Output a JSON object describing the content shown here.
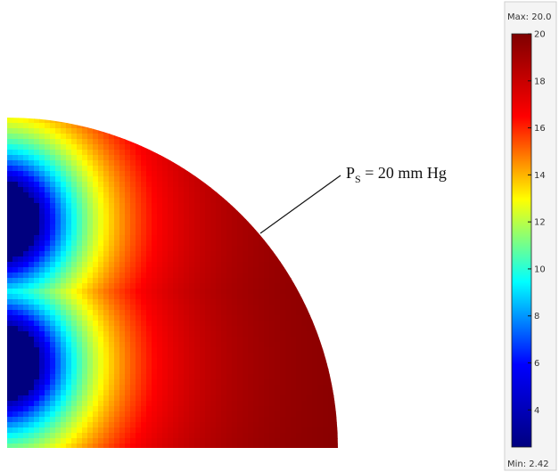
{
  "chart_data": {
    "type": "heatmap",
    "title": "",
    "xlabel": "",
    "ylabel": "",
    "colormap": "jet",
    "colormap_stops": [
      "#00007f",
      "#0000ff",
      "#00ffff",
      "#ffff00",
      "#ff0000",
      "#7f0000"
    ],
    "colorbar": {
      "max_label": "Max: 20.0",
      "min_label": "Min: 2.42",
      "max": 20.0,
      "min": 2.42,
      "ticks": [
        "20",
        "18",
        "16",
        "14",
        "12",
        "10",
        "8",
        "6",
        "4"
      ],
      "tick_values": [
        20,
        18,
        16,
        14,
        12,
        10,
        8,
        6,
        4
      ]
    },
    "domain": "quarter-circle",
    "sinks": [
      {
        "location": "upper-left",
        "value": 2.42
      },
      {
        "location": "lower-left",
        "value": 2.42
      }
    ],
    "boundary_value": 20,
    "annotation": {
      "symbol": "P",
      "subscript": "S",
      "text": " = 20 mm Hg"
    }
  }
}
